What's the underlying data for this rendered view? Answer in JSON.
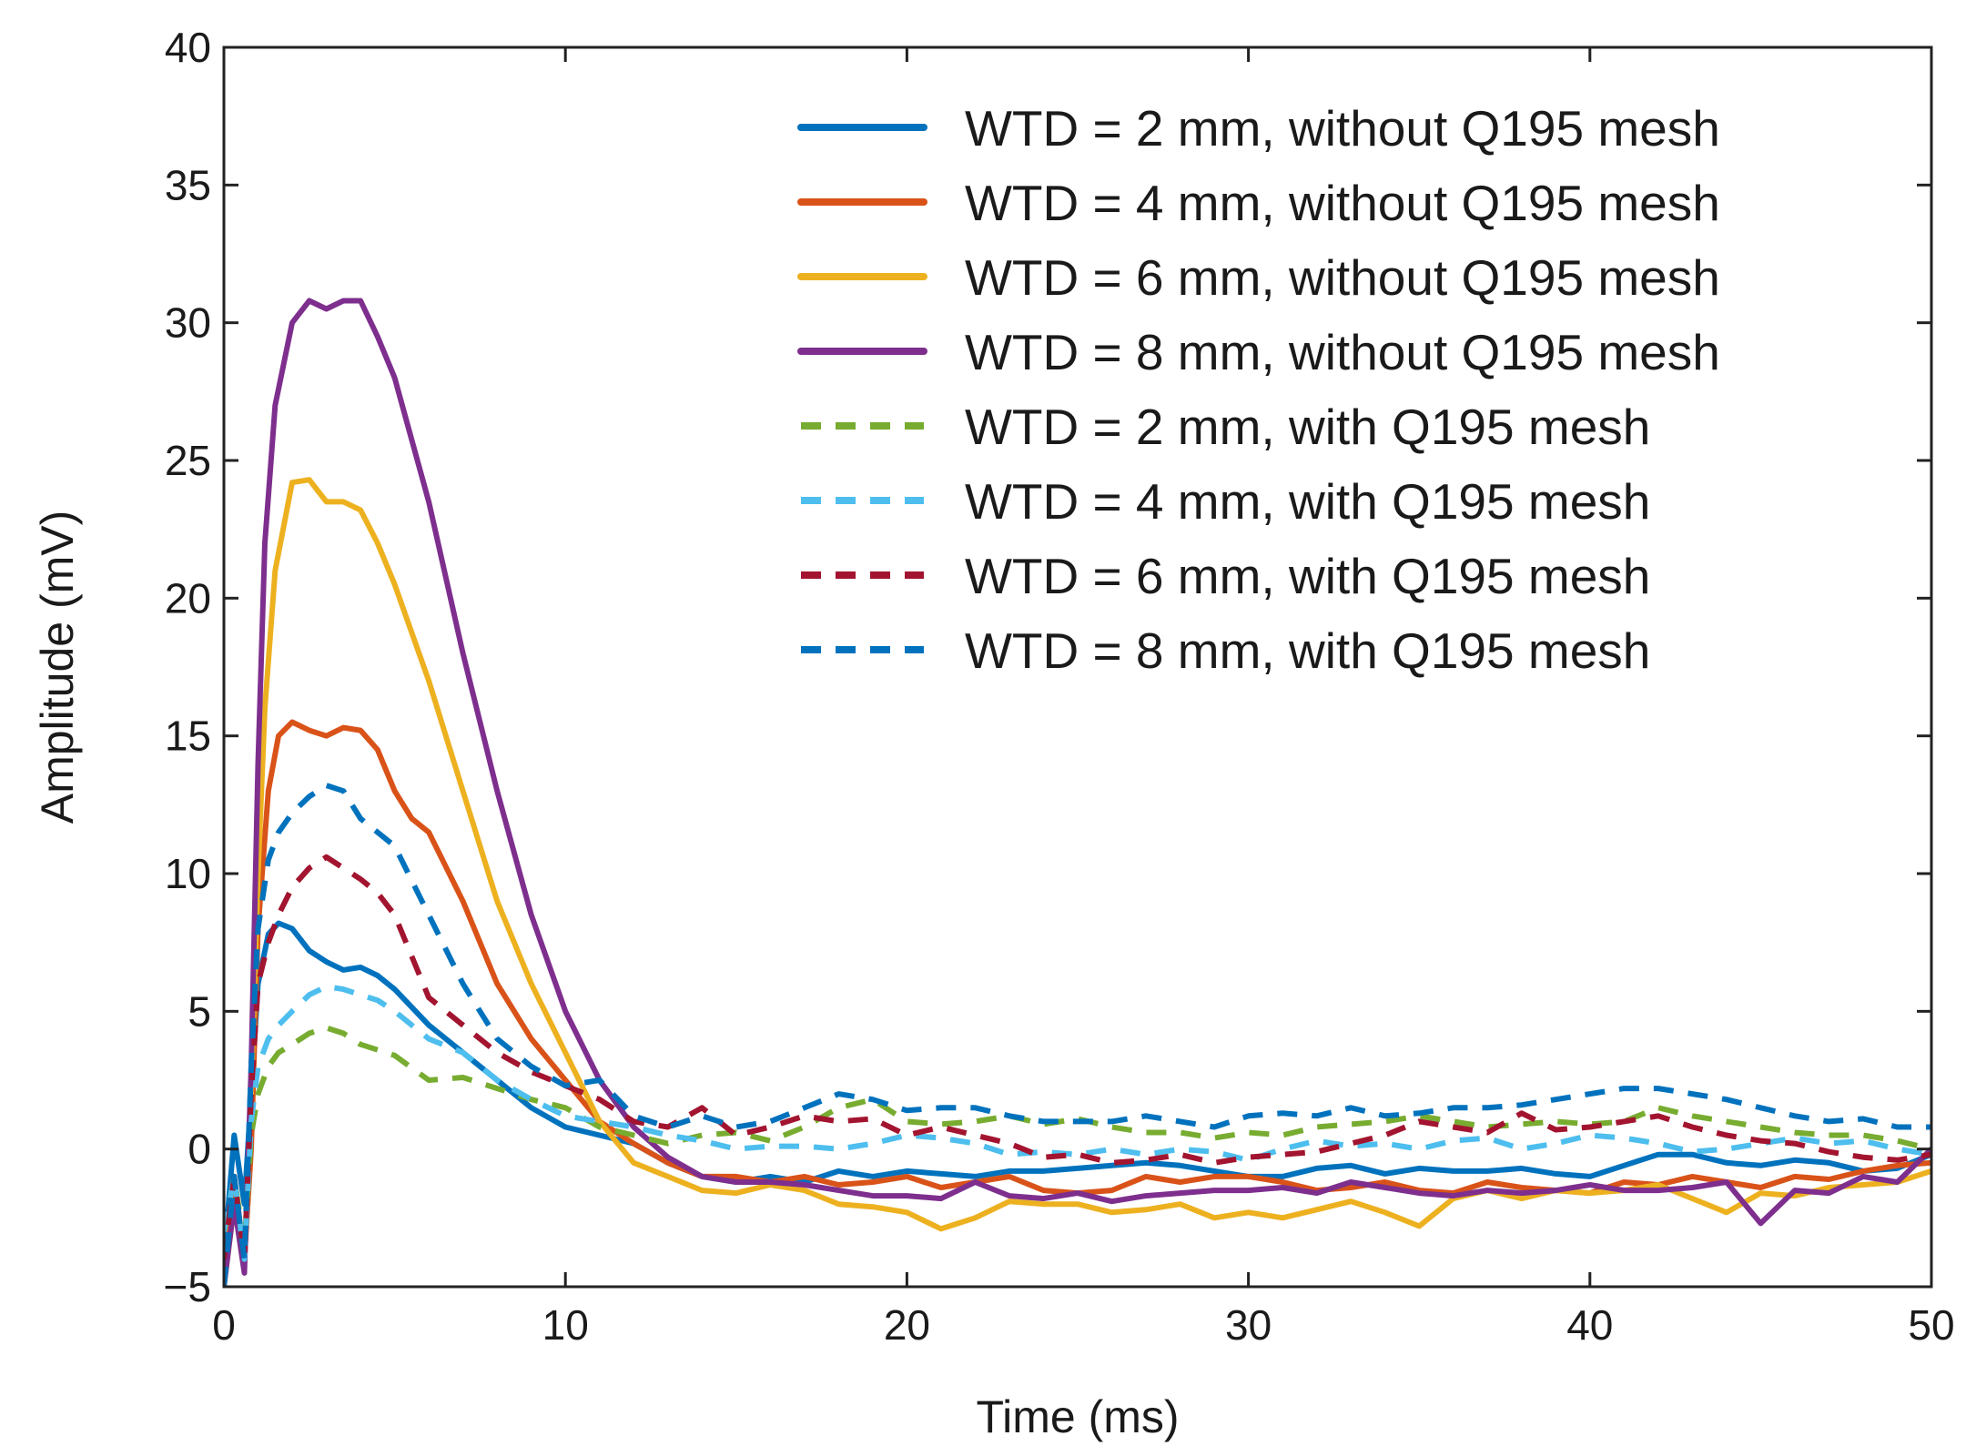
{
  "chart_data": {
    "type": "line",
    "title": "",
    "xlabel": "Time (ms)",
    "ylabel": "Amplitude (mV)",
    "xlim": [
      0,
      50
    ],
    "ylim": [
      -5,
      40
    ],
    "xticks": [
      "0",
      "10",
      "20",
      "30",
      "40",
      "50"
    ],
    "yticks": [
      "−5",
      "0",
      "5",
      "10",
      "15",
      "20",
      "25",
      "30",
      "35",
      "40"
    ],
    "grid": false,
    "legend_position": "top-right",
    "series": [
      {
        "name": "WTD = 2 mm, without Q195 mesh",
        "color": "#0072BD",
        "dash": "solid",
        "x": [
          0,
          0.3,
          0.6,
          0.8,
          1.0,
          1.3,
          1.6,
          2.0,
          2.5,
          3.0,
          3.5,
          4.0,
          4.5,
          5.0,
          6.0,
          7.0,
          8.0,
          9.0,
          10.0,
          11.0,
          12.0,
          13.0,
          14.0,
          15.0,
          16.0,
          17.0,
          18.0,
          19.0,
          20.0,
          21.0,
          22.0,
          23.0,
          24.0,
          25.0,
          26.0,
          27.0,
          28.0,
          29.0,
          30.0,
          31.0,
          32.0,
          33.0,
          34.0,
          35.0,
          36.0,
          37.0,
          38.0,
          39.0,
          40.0,
          41.0,
          42.0,
          43.0,
          44.0,
          45.0,
          46.0,
          47.0,
          48.0,
          49.0,
          50.0
        ],
        "y": [
          -4.0,
          0.5,
          -2.0,
          2.0,
          6.0,
          7.8,
          8.2,
          8.0,
          7.2,
          6.8,
          6.5,
          6.6,
          6.3,
          5.8,
          4.5,
          3.5,
          2.5,
          1.5,
          0.8,
          0.5,
          0.2,
          -0.5,
          -1.0,
          -1.2,
          -1.0,
          -1.2,
          -0.8,
          -1.0,
          -0.8,
          -0.9,
          -1.0,
          -0.8,
          -0.8,
          -0.7,
          -0.6,
          -0.5,
          -0.6,
          -0.8,
          -1.0,
          -1.0,
          -0.7,
          -0.6,
          -0.9,
          -0.7,
          -0.8,
          -0.8,
          -0.7,
          -0.9,
          -1.0,
          -0.6,
          -0.2,
          -0.2,
          -0.5,
          -0.6,
          -0.4,
          -0.5,
          -0.8,
          -0.7,
          -0.2
        ]
      },
      {
        "name": "WTD = 4 mm, without Q195 mesh",
        "color": "#D95319",
        "dash": "solid",
        "x": [
          0,
          0.3,
          0.6,
          0.8,
          1.0,
          1.3,
          1.6,
          2.0,
          2.5,
          3.0,
          3.5,
          4.0,
          4.5,
          5.0,
          5.5,
          6.0,
          7.0,
          8.0,
          9.0,
          10.0,
          11.0,
          12.0,
          13.0,
          14.0,
          15.0,
          16.0,
          17.0,
          18.0,
          19.0,
          20.0,
          21.0,
          22.0,
          23.0,
          24.0,
          25.0,
          26.0,
          27.0,
          28.0,
          29.0,
          30.0,
          31.0,
          32.0,
          33.0,
          34.0,
          35.0,
          36.0,
          37.0,
          38.0,
          39.0,
          40.0,
          41.0,
          42.0,
          43.0,
          44.0,
          45.0,
          46.0,
          47.0,
          48.0,
          49.0,
          50.0
        ],
        "y": [
          -5.0,
          -1.0,
          -4.0,
          0.0,
          8.0,
          13.0,
          15.0,
          15.5,
          15.2,
          15.0,
          15.3,
          15.2,
          14.5,
          13.0,
          12.0,
          11.5,
          9.0,
          6.0,
          4.0,
          2.5,
          1.0,
          0.2,
          -0.5,
          -1.0,
          -1.0,
          -1.2,
          -1.0,
          -1.3,
          -1.2,
          -1.0,
          -1.4,
          -1.2,
          -1.0,
          -1.5,
          -1.6,
          -1.5,
          -1.0,
          -1.2,
          -1.0,
          -1.0,
          -1.2,
          -1.5,
          -1.4,
          -1.2,
          -1.5,
          -1.6,
          -1.2,
          -1.4,
          -1.5,
          -1.6,
          -1.2,
          -1.3,
          -1.0,
          -1.2,
          -1.4,
          -1.0,
          -1.1,
          -0.8,
          -0.6,
          -0.5
        ]
      },
      {
        "name": "WTD = 6 mm, without Q195 mesh",
        "color": "#EDB120",
        "dash": "solid",
        "x": [
          0,
          0.3,
          0.6,
          0.8,
          1.0,
          1.2,
          1.5,
          2.0,
          2.5,
          3.0,
          3.5,
          4.0,
          4.5,
          5.0,
          6.0,
          7.0,
          8.0,
          9.0,
          10.0,
          11.0,
          12.0,
          13.0,
          14.0,
          15.0,
          16.0,
          17.0,
          18.0,
          19.0,
          20.0,
          21.0,
          22.0,
          23.0,
          24.0,
          25.0,
          26.0,
          27.0,
          28.0,
          29.0,
          30.0,
          31.0,
          32.0,
          33.0,
          34.0,
          35.0,
          36.0,
          37.0,
          38.0,
          39.0,
          40.0,
          41.0,
          42.0,
          43.0,
          44.0,
          45.0,
          46.0,
          47.0,
          48.0,
          49.0,
          50.0
        ],
        "y": [
          -5.0,
          -2.0,
          -4.0,
          2.0,
          10.0,
          16.0,
          21.0,
          24.2,
          24.3,
          23.5,
          23.5,
          23.2,
          22.0,
          20.5,
          17.0,
          13.0,
          9.0,
          6.0,
          3.5,
          1.0,
          -0.5,
          -1.0,
          -1.5,
          -1.6,
          -1.3,
          -1.5,
          -2.0,
          -2.1,
          -2.3,
          -2.9,
          -2.5,
          -1.9,
          -2.0,
          -2.0,
          -2.3,
          -2.2,
          -2.0,
          -2.5,
          -2.3,
          -2.5,
          -2.2,
          -1.9,
          -2.3,
          -2.8,
          -1.8,
          -1.5,
          -1.8,
          -1.5,
          -1.6,
          -1.5,
          -1.3,
          -1.8,
          -2.3,
          -1.6,
          -1.7,
          -1.4,
          -1.3,
          -1.2,
          -0.8
        ]
      },
      {
        "name": "WTD = 8 mm, without Q195 mesh",
        "color": "#7E2F8E",
        "dash": "solid",
        "x": [
          0,
          0.3,
          0.6,
          0.8,
          1.0,
          1.2,
          1.5,
          2.0,
          2.5,
          3.0,
          3.5,
          4.0,
          4.5,
          5.0,
          6.0,
          7.0,
          8.0,
          9.0,
          10.0,
          11.0,
          12.0,
          13.0,
          14.0,
          15.0,
          16.0,
          17.0,
          18.0,
          19.0,
          20.0,
          21.0,
          22.0,
          23.0,
          24.0,
          25.0,
          26.0,
          27.0,
          28.0,
          29.0,
          30.0,
          31.0,
          32.0,
          33.0,
          34.0,
          35.0,
          36.0,
          37.0,
          38.0,
          39.0,
          40.0,
          41.0,
          42.0,
          43.0,
          44.0,
          45.0,
          46.0,
          47.0,
          48.0,
          49.0,
          50.0
        ],
        "y": [
          -5.0,
          -2.0,
          -4.5,
          3.0,
          14.0,
          22.0,
          27.0,
          30.0,
          30.8,
          30.5,
          30.8,
          30.8,
          29.5,
          28.0,
          23.5,
          18.0,
          13.0,
          8.5,
          5.0,
          2.5,
          0.8,
          -0.3,
          -1.0,
          -1.2,
          -1.2,
          -1.3,
          -1.5,
          -1.7,
          -1.7,
          -1.8,
          -1.2,
          -1.7,
          -1.8,
          -1.6,
          -1.9,
          -1.7,
          -1.6,
          -1.5,
          -1.5,
          -1.4,
          -1.6,
          -1.2,
          -1.4,
          -1.6,
          -1.7,
          -1.5,
          -1.6,
          -1.5,
          -1.3,
          -1.5,
          -1.5,
          -1.4,
          -1.2,
          -2.7,
          -1.5,
          -1.6,
          -1.0,
          -1.2,
          0.0
        ]
      },
      {
        "name": "WTD = 2 mm, with Q195 mesh",
        "color": "#77AC30",
        "dash": "dashed",
        "x": [
          0,
          0.3,
          0.6,
          0.8,
          1.0,
          1.3,
          1.6,
          2.0,
          2.5,
          3.0,
          3.5,
          4.0,
          4.5,
          5.0,
          6.0,
          7.0,
          8.0,
          9.0,
          10.0,
          11.0,
          12.0,
          13.0,
          14.0,
          15.0,
          16.0,
          17.0,
          18.0,
          19.0,
          20.0,
          21.0,
          22.0,
          23.0,
          24.0,
          25.0,
          26.0,
          27.0,
          28.0,
          29.0,
          30.0,
          31.0,
          32.0,
          33.0,
          34.0,
          35.0,
          36.0,
          37.0,
          38.0,
          39.0,
          40.0,
          41.0,
          42.0,
          43.0,
          44.0,
          45.0,
          46.0,
          47.0,
          48.0,
          49.0,
          50.0
        ],
        "y": [
          -3.0,
          -1.0,
          -3.5,
          0.5,
          2.0,
          3.0,
          3.5,
          3.8,
          4.2,
          4.4,
          4.2,
          3.8,
          3.6,
          3.4,
          2.5,
          2.6,
          2.2,
          1.8,
          1.5,
          0.8,
          0.5,
          0.2,
          0.5,
          0.6,
          0.3,
          0.8,
          1.5,
          1.8,
          1.0,
          0.9,
          1.0,
          1.2,
          0.9,
          1.1,
          0.8,
          0.6,
          0.6,
          0.4,
          0.6,
          0.5,
          0.8,
          0.9,
          1.0,
          1.2,
          1.0,
          0.8,
          0.9,
          1.0,
          0.9,
          1.0,
          1.5,
          1.2,
          1.0,
          0.8,
          0.6,
          0.5,
          0.5,
          0.3,
          0.0
        ]
      },
      {
        "name": "WTD = 4 mm, with Q195 mesh",
        "color": "#4DBEEE",
        "dash": "dashed",
        "x": [
          0,
          0.3,
          0.6,
          0.8,
          1.0,
          1.3,
          1.6,
          2.0,
          2.5,
          3.0,
          3.5,
          4.0,
          4.5,
          5.0,
          6.0,
          7.0,
          8.0,
          9.0,
          10.0,
          11.0,
          12.0,
          13.0,
          14.0,
          15.0,
          16.0,
          17.0,
          18.0,
          19.0,
          20.0,
          21.0,
          22.0,
          23.0,
          24.0,
          25.0,
          26.0,
          27.0,
          28.0,
          29.0,
          30.0,
          31.0,
          32.0,
          33.0,
          34.0,
          35.0,
          36.0,
          37.0,
          38.0,
          39.0,
          40.0,
          41.0,
          42.0,
          43.0,
          44.0,
          45.0,
          46.0,
          47.0,
          48.0,
          49.0,
          50.0
        ],
        "y": [
          -3.0,
          -1.0,
          -4.0,
          1.0,
          3.0,
          4.0,
          4.5,
          5.0,
          5.6,
          5.9,
          5.8,
          5.6,
          5.4,
          5.0,
          4.0,
          3.5,
          2.5,
          1.8,
          1.2,
          1.0,
          0.8,
          0.5,
          0.3,
          0.0,
          0.1,
          0.1,
          0.0,
          0.2,
          0.5,
          0.4,
          0.2,
          -0.2,
          -0.1,
          -0.2,
          0.0,
          -0.2,
          0.0,
          -0.1,
          -0.4,
          0.0,
          0.3,
          0.1,
          0.2,
          0.0,
          0.3,
          0.4,
          0.0,
          0.2,
          0.5,
          0.4,
          0.2,
          -0.1,
          0.0,
          0.2,
          0.4,
          0.2,
          0.3,
          0.0,
          -0.2
        ]
      },
      {
        "name": "WTD = 6 mm, with Q195 mesh",
        "color": "#A2142F",
        "dash": "dashed",
        "x": [
          0,
          0.3,
          0.6,
          0.8,
          1.0,
          1.3,
          1.6,
          2.0,
          2.5,
          3.0,
          3.5,
          4.0,
          4.5,
          5.0,
          6.0,
          7.0,
          8.0,
          9.0,
          10.0,
          11.0,
          12.0,
          13.0,
          14.0,
          15.0,
          16.0,
          17.0,
          18.0,
          19.0,
          20.0,
          21.0,
          22.0,
          23.0,
          24.0,
          25.0,
          26.0,
          27.0,
          28.0,
          29.0,
          30.0,
          31.0,
          32.0,
          33.0,
          34.0,
          35.0,
          36.0,
          37.0,
          38.0,
          39.0,
          40.0,
          41.0,
          42.0,
          43.0,
          44.0,
          45.0,
          46.0,
          47.0,
          48.0,
          49.0,
          50.0
        ],
        "y": [
          -4.0,
          -1.0,
          -4.0,
          2.0,
          6.0,
          7.5,
          8.5,
          9.5,
          10.2,
          10.6,
          10.2,
          9.8,
          9.3,
          8.5,
          5.5,
          4.5,
          3.5,
          2.8,
          2.3,
          1.8,
          1.0,
          0.8,
          1.5,
          0.5,
          0.8,
          1.2,
          1.0,
          1.1,
          0.5,
          0.8,
          0.5,
          0.2,
          -0.3,
          -0.2,
          -0.5,
          -0.4,
          -0.2,
          -0.5,
          -0.3,
          -0.2,
          -0.1,
          0.2,
          0.5,
          1.0,
          0.8,
          0.6,
          1.3,
          0.7,
          0.8,
          1.0,
          1.2,
          0.8,
          0.5,
          0.3,
          0.2,
          -0.1,
          -0.3,
          -0.4,
          -0.2
        ]
      },
      {
        "name": "WTD = 8 mm, with Q195 mesh",
        "color": "#0072BD",
        "dash": "dashed",
        "x": [
          0,
          0.3,
          0.6,
          0.8,
          1.0,
          1.3,
          1.6,
          2.0,
          2.5,
          3.0,
          3.5,
          4.0,
          4.5,
          5.0,
          6.0,
          7.0,
          8.0,
          9.0,
          10.0,
          11.0,
          12.0,
          13.0,
          14.0,
          15.0,
          16.0,
          17.0,
          18.0,
          19.0,
          20.0,
          21.0,
          22.0,
          23.0,
          24.0,
          25.0,
          26.0,
          27.0,
          28.0,
          29.0,
          30.0,
          31.0,
          32.0,
          33.0,
          34.0,
          35.0,
          36.0,
          37.0,
          38.0,
          39.0,
          40.0,
          41.0,
          42.0,
          43.0,
          44.0,
          45.0,
          46.0,
          47.0,
          48.0,
          49.0,
          50.0
        ],
        "y": [
          -5.0,
          -1.0,
          -4.0,
          3.0,
          8.0,
          10.5,
          11.5,
          12.2,
          12.8,
          13.2,
          13.0,
          12.0,
          11.5,
          11.0,
          8.5,
          6.0,
          4.0,
          3.0,
          2.3,
          2.5,
          1.2,
          0.8,
          1.2,
          0.8,
          1.0,
          1.5,
          2.0,
          1.8,
          1.4,
          1.5,
          1.5,
          1.2,
          1.0,
          1.0,
          1.0,
          1.2,
          1.0,
          0.8,
          1.2,
          1.3,
          1.2,
          1.5,
          1.2,
          1.3,
          1.5,
          1.5,
          1.6,
          1.8,
          2.0,
          2.2,
          2.2,
          2.0,
          1.8,
          1.5,
          1.2,
          1.0,
          1.1,
          0.8,
          0.8
        ]
      }
    ]
  }
}
